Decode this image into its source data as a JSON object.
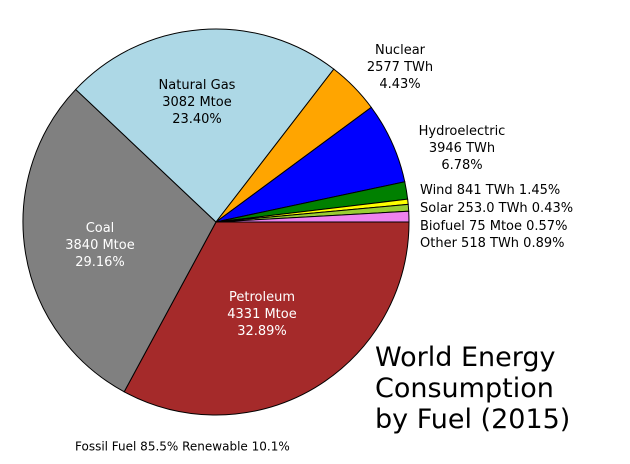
{
  "chart_data": {
    "type": "pie",
    "title": "World Energy Consumption by Fuel (2015)",
    "footnote": "Fossil Fuel 85.5% Renewable 10.1%",
    "categories": [
      "Petroleum",
      "Coal",
      "Natural Gas",
      "Nuclear",
      "Hydroelectric",
      "Wind",
      "Solar",
      "Biofuel",
      "Other"
    ],
    "amounts": [
      "4331 Mtoe",
      "3840 Mtoe",
      "3082 Mtoe",
      "2577 TWh",
      "3946 TWh",
      "841 TWh",
      "253.0 TWh",
      "75 Mtoe",
      "518 TWh"
    ],
    "values": [
      32.89,
      29.16,
      23.4,
      4.43,
      6.78,
      1.45,
      0.43,
      0.57,
      0.89
    ],
    "value_labels": [
      "32.89%",
      "29.16%",
      "23.40%",
      "4.43%",
      "6.78%",
      "1.45%",
      "0.43%",
      "0.57%",
      "0.89%"
    ],
    "colors": [
      "#a52a2a",
      "#808080",
      "#add8e6",
      "#ffa500",
      "#0000ff",
      "#008000",
      "#ffff00",
      "#9acd32",
      "#ee82ee"
    ]
  }
}
